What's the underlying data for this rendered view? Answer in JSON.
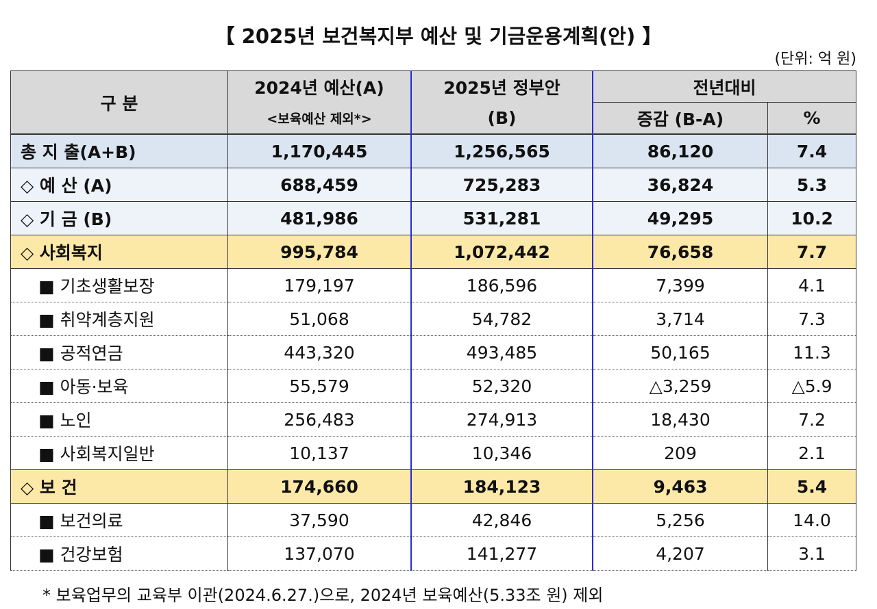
{
  "header": {
    "title": "【 2025년 보건복지부 예산 및 기금운용계획(안) 】",
    "unit": "(단위: 억 원)"
  },
  "table": {
    "head": {
      "col0": "구 분",
      "col1": "2024년 예산(A)",
      "col1_note": "<보육예산 제외*>",
      "col2": "2025년 정부안",
      "col2_note": "(B)",
      "col3": "전년대비",
      "col3a": "증감 (B-A)",
      "col3b": "%"
    },
    "rows": [
      [
        "총 지 출(A+B)",
        "1,170,445",
        "1,256,565",
        "86,120",
        "7.4"
      ],
      [
        "◇ 예 산 (A)",
        "688,459",
        "725,283",
        "36,824",
        "5.3"
      ],
      [
        "◇ 기 금 (B)",
        "481,986",
        "531,281",
        "49,295",
        "10.2"
      ],
      [
        "◇ 사회복지",
        "995,784",
        "1,072,442",
        "76,658",
        "7.7"
      ],
      [
        "■ 기초생활보장",
        "179,197",
        "186,596",
        "7,399",
        "4.1"
      ],
      [
        "■ 취약계층지원",
        "51,068",
        "54,782",
        "3,714",
        "7.3"
      ],
      [
        "■ 공적연금",
        "443,320",
        "493,485",
        "50,165",
        "11.3"
      ],
      [
        "■ 아동·보육",
        "55,579",
        "52,320",
        "△3,259",
        "△5.9"
      ],
      [
        "■ 노인",
        "256,483",
        "274,913",
        "18,430",
        "7.2"
      ],
      [
        "■ 사회복지일반",
        "10,137",
        "10,346",
        "209",
        "2.1"
      ],
      [
        "◇ 보 건",
        "174,660",
        "184,123",
        "9,463",
        "5.4"
      ],
      [
        "■ 보건의료",
        "37,590",
        "42,846",
        "5,256",
        "14.0"
      ],
      [
        "■ 건강보험",
        "137,070",
        "141,277",
        "4,207",
        "3.1"
      ]
    ]
  },
  "footnote": "* 보육업무의 교육부 이관(2024.6.27.)으로, 2024년 보육예산(5.33조 원) 제외"
}
